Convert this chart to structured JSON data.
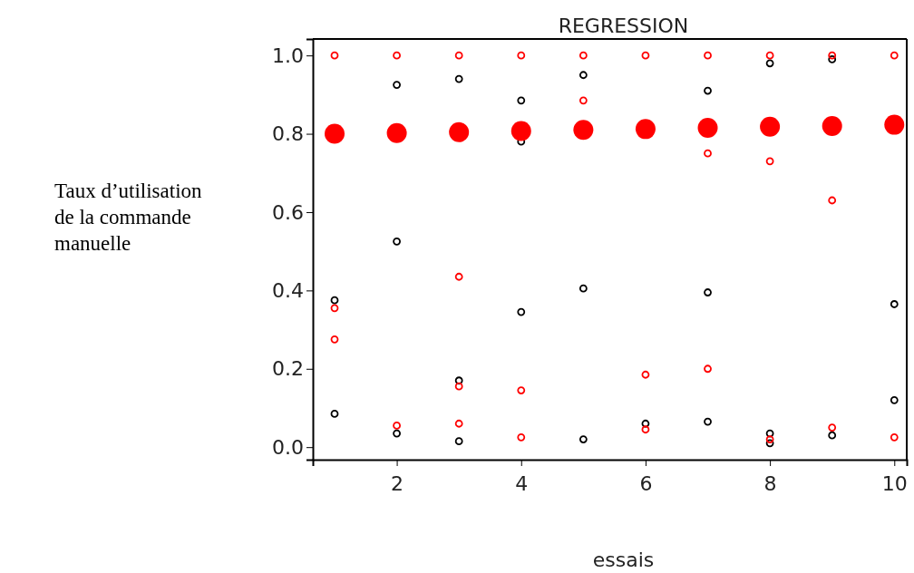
{
  "chart_data": {
    "type": "scatter",
    "title": "REGRESSION",
    "xlabel": "essais",
    "ylabel": "Taux d’utilisation de la commande manuelle",
    "xlim": [
      0.65,
      10.2
    ],
    "xticks": [
      2,
      4,
      6,
      8,
      10
    ],
    "ylim": [
      -0.032,
      1.042
    ],
    "yticks": [
      {
        "value": 0,
        "label": "0.0"
      },
      {
        "value": 0.2,
        "label": "0.2"
      },
      {
        "value": 0.4,
        "label": "0.4"
      },
      {
        "value": 0.6,
        "label": "0.6"
      },
      {
        "value": 0.8,
        "label": "0.8"
      },
      {
        "value": 1,
        "label": "1.0"
      }
    ],
    "grid": false,
    "marker": "circle",
    "series": [
      {
        "color": "#000000",
        "x": [
          1,
          1,
          2,
          2,
          2,
          3,
          3,
          3,
          4,
          4,
          4,
          5,
          5,
          5,
          6,
          7,
          7,
          7,
          8,
          8,
          8,
          9,
          9,
          10,
          10
        ],
        "values": [
          0.375,
          0.085,
          0.925,
          0.525,
          0.035,
          0.94,
          0.17,
          0.015,
          0.885,
          0.78,
          0.345,
          0.95,
          0.405,
          0.02,
          0.06,
          0.91,
          0.395,
          0.065,
          0.98,
          0.035,
          0.01,
          0.99,
          0.03,
          0.365,
          0.12
        ]
      },
      {
        "color": "#ff0000",
        "x": [
          1,
          1,
          1,
          2,
          2,
          3,
          3,
          3,
          3,
          4,
          4,
          4,
          5,
          5,
          6,
          6,
          6,
          7,
          7,
          7,
          8,
          8,
          8,
          9,
          9,
          9,
          10,
          10
        ],
        "values": [
          1,
          0.355,
          0.275,
          1,
          0.055,
          1,
          0.435,
          0.155,
          0.06,
          1,
          0.145,
          0.025,
          1,
          0.885,
          1,
          0.185,
          0.045,
          1,
          0.75,
          0.2,
          1,
          0.73,
          0.02,
          1,
          0.63,
          0.05,
          1,
          0.025
        ]
      },
      {
        "type": "bubble",
        "color": "#ff0000",
        "x": [
          1,
          2,
          3,
          4,
          5,
          6,
          7,
          8,
          9,
          10
        ],
        "values": [
          0.8,
          0.802,
          0.804,
          0.807,
          0.81,
          0.812,
          0.815,
          0.818,
          0.82,
          0.823
        ],
        "sizes": [
          1,
          1,
          1,
          1,
          1,
          1,
          1,
          1,
          1,
          1
        ]
      }
    ]
  }
}
